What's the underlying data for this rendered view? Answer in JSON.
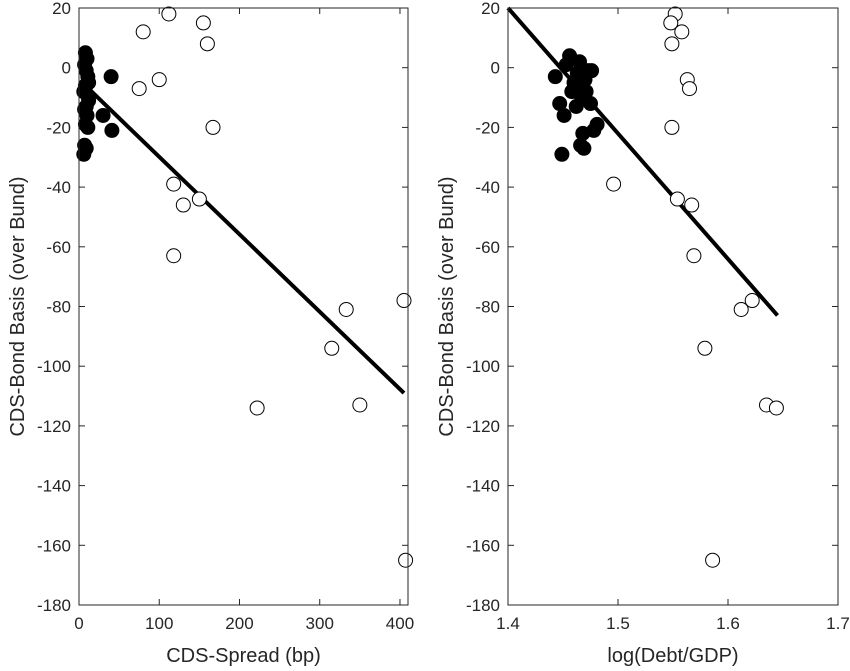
{
  "chart_data": [
    {
      "type": "scatter",
      "xlabel": "CDS-Spread (bp)",
      "ylabel": "CDS-Bond Basis (over Bund)",
      "xlim": [
        0,
        410
      ],
      "ylim": [
        -180,
        20
      ],
      "xticks": [
        0,
        100,
        200,
        300,
        400
      ],
      "yticks": [
        20,
        0,
        -20,
        -40,
        -60,
        -80,
        -100,
        -120,
        -140,
        -160,
        -180
      ],
      "grid": false,
      "series": [
        {
          "marker": "filled-circle",
          "points": [
            [
              8,
              5
            ],
            [
              10,
              3
            ],
            [
              7,
              1
            ],
            [
              9,
              -1
            ],
            [
              11,
              -3
            ],
            [
              12,
              -5
            ],
            [
              8,
              -6
            ],
            [
              6,
              -8
            ],
            [
              10,
              -9
            ],
            [
              12,
              -11
            ],
            [
              9,
              -13
            ],
            [
              7,
              -14
            ],
            [
              10,
              -16
            ],
            [
              8,
              -19
            ],
            [
              11,
              -20
            ],
            [
              7,
              -26
            ],
            [
              9,
              -27
            ],
            [
              6,
              -29
            ],
            [
              40,
              -3
            ],
            [
              30,
              -16
            ],
            [
              41,
              -21
            ]
          ]
        },
        {
          "marker": "open-circle",
          "points": [
            [
              112,
              18
            ],
            [
              80,
              12
            ],
            [
              155,
              15
            ],
            [
              160,
              8
            ],
            [
              100,
              -4
            ],
            [
              75,
              -7
            ],
            [
              167,
              -20
            ],
            [
              118,
              -39
            ],
            [
              130,
              -46
            ],
            [
              150,
              -44
            ],
            [
              118,
              -63
            ],
            [
              222,
              -114
            ],
            [
              315,
              -94
            ],
            [
              333,
              -81
            ],
            [
              350,
              -113
            ],
            [
              405,
              -78
            ],
            [
              407,
              -165
            ]
          ]
        }
      ],
      "fit_line": {
        "x": [
          8,
          405
        ],
        "y": [
          -6,
          -109
        ]
      }
    },
    {
      "type": "scatter",
      "xlabel": "log(Debt/GDP)",
      "ylabel": "CDS-Bond Basis (over Bund)",
      "xlim": [
        1.4,
        1.7
      ],
      "ylim": [
        -180,
        20
      ],
      "xticks": [
        1.4,
        1.5,
        1.6,
        1.7
      ],
      "yticks": [
        20,
        0,
        -20,
        -40,
        -60,
        -80,
        -100,
        -120,
        -140,
        -160,
        -180
      ],
      "grid": false,
      "series": [
        {
          "marker": "filled-circle",
          "points": [
            [
              1.443,
              -3
            ],
            [
              1.447,
              -12
            ],
            [
              1.451,
              -16
            ],
            [
              1.453,
              1
            ],
            [
              1.456,
              4
            ],
            [
              1.458,
              -8
            ],
            [
              1.46,
              -5
            ],
            [
              1.462,
              -13
            ],
            [
              1.463,
              -2
            ],
            [
              1.465,
              2
            ],
            [
              1.466,
              -6
            ],
            [
              1.467,
              -10
            ],
            [
              1.468,
              -22
            ],
            [
              1.469,
              -27
            ],
            [
              1.47,
              -4
            ],
            [
              1.471,
              -8
            ],
            [
              1.473,
              -1
            ],
            [
              1.475,
              -12
            ],
            [
              1.478,
              -21
            ],
            [
              1.481,
              -19
            ],
            [
              1.449,
              -29
            ],
            [
              1.466,
              -26
            ],
            [
              1.476,
              -1
            ]
          ]
        },
        {
          "marker": "open-circle",
          "points": [
            [
              1.552,
              18
            ],
            [
              1.548,
              15
            ],
            [
              1.558,
              12
            ],
            [
              1.549,
              8
            ],
            [
              1.563,
              -4
            ],
            [
              1.565,
              -7
            ],
            [
              1.549,
              -20
            ],
            [
              1.496,
              -39
            ],
            [
              1.554,
              -44
            ],
            [
              1.567,
              -46
            ],
            [
              1.569,
              -63
            ],
            [
              1.622,
              -78
            ],
            [
              1.612,
              -81
            ],
            [
              1.579,
              -94
            ],
            [
              1.635,
              -113
            ],
            [
              1.644,
              -114
            ],
            [
              1.586,
              -165
            ]
          ]
        }
      ],
      "fit_line": {
        "x": [
          1.4,
          1.645
        ],
        "y": [
          20,
          -83
        ]
      }
    }
  ]
}
